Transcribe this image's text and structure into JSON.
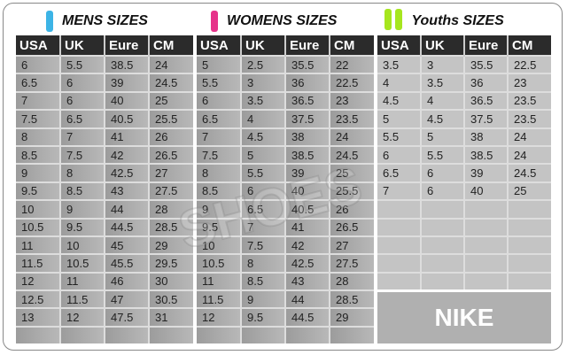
{
  "headers": [
    "USA",
    "UK",
    "Eure",
    "CM"
  ],
  "colors": {
    "mens": "#3cb4e6",
    "womens": "#e6338a",
    "youths": "#a6e61e",
    "header_bg": "#2b2b2b"
  },
  "watermark": "SHOES",
  "brand": "NIKE",
  "mens": {
    "title": "MENS SIZES",
    "rows": [
      [
        "6",
        "5.5",
        "38.5",
        "24"
      ],
      [
        "6.5",
        "6",
        "39",
        "24.5"
      ],
      [
        "7",
        "6",
        "40",
        "25"
      ],
      [
        "7.5",
        "6.5",
        "40.5",
        "25.5"
      ],
      [
        "8",
        "7",
        "41",
        "26"
      ],
      [
        "8.5",
        "7.5",
        "42",
        "26.5"
      ],
      [
        "9",
        "8",
        "42.5",
        "27"
      ],
      [
        "9.5",
        "8.5",
        "43",
        "27.5"
      ],
      [
        "10",
        "9",
        "44",
        "28"
      ],
      [
        "10.5",
        "9.5",
        "44.5",
        "28.5"
      ],
      [
        "11",
        "10",
        "45",
        "29"
      ],
      [
        "11.5",
        "10.5",
        "45.5",
        "29.5"
      ],
      [
        "12",
        "11",
        "46",
        "30"
      ],
      [
        "12.5",
        "11.5",
        "47",
        "30.5"
      ],
      [
        "13",
        "12",
        "47.5",
        "31"
      ],
      [
        "",
        "",
        "",
        ""
      ]
    ]
  },
  "womens": {
    "title": "WOMENS SIZES",
    "rows": [
      [
        "5",
        "2.5",
        "35.5",
        "22"
      ],
      [
        "5.5",
        "3",
        "36",
        "22.5"
      ],
      [
        "6",
        "3.5",
        "36.5",
        "23"
      ],
      [
        "6.5",
        "4",
        "37.5",
        "23.5"
      ],
      [
        "7",
        "4.5",
        "38",
        "24"
      ],
      [
        "7.5",
        "5",
        "38.5",
        "24.5"
      ],
      [
        "8",
        "5.5",
        "39",
        "25"
      ],
      [
        "8.5",
        "6",
        "40",
        "25.5"
      ],
      [
        "9",
        "6.5",
        "40.5",
        "26"
      ],
      [
        "9.5",
        "7",
        "41",
        "26.5"
      ],
      [
        "10",
        "7.5",
        "42",
        "27"
      ],
      [
        "10.5",
        "8",
        "42.5",
        "27.5"
      ],
      [
        "11",
        "8.5",
        "43",
        "28"
      ],
      [
        "11.5",
        "9",
        "44",
        "28.5"
      ],
      [
        "12",
        "9.5",
        "44.5",
        "29"
      ],
      [
        "",
        "",
        "",
        ""
      ]
    ]
  },
  "youths": {
    "title": "Youths SIZES",
    "rows": [
      [
        "3.5",
        "3",
        "35.5",
        "22.5"
      ],
      [
        "4",
        "3.5",
        "36",
        "23"
      ],
      [
        "4.5",
        "4",
        "36.5",
        "23.5"
      ],
      [
        "5",
        "4.5",
        "37.5",
        "23.5"
      ],
      [
        "5.5",
        "5",
        "38",
        "24"
      ],
      [
        "6",
        "5.5",
        "38.5",
        "24"
      ],
      [
        "6.5",
        "6",
        "39",
        "24.5"
      ],
      [
        "7",
        "6",
        "40",
        "25"
      ],
      [
        "",
        "",
        "",
        ""
      ],
      [
        "",
        "",
        "",
        ""
      ],
      [
        "",
        "",
        "",
        ""
      ],
      [
        "",
        "",
        "",
        ""
      ],
      [
        "",
        "",
        "",
        ""
      ]
    ]
  }
}
